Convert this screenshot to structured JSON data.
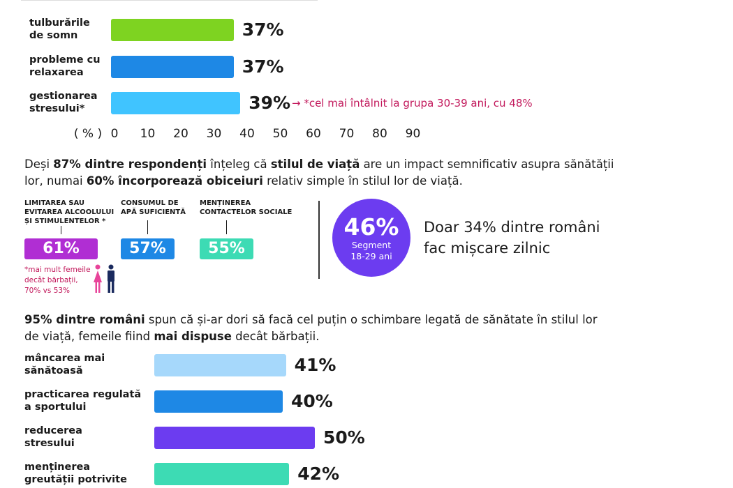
{
  "chart_data": [
    {
      "type": "bar",
      "orientation": "horizontal",
      "categories": [
        "tulburările de somn",
        "probleme cu relaxarea",
        "gestionarea stresului*"
      ],
      "values": [
        37,
        37,
        39
      ],
      "value_labels": [
        "37%",
        "37%",
        "39%"
      ],
      "colors": [
        "#7ed321",
        "#1e88e5",
        "#40c4ff"
      ],
      "axis_unit_label": "( % )",
      "xticks": [
        "0",
        "10",
        "20",
        "30",
        "40",
        "50",
        "60",
        "70",
        "80",
        "90"
      ],
      "xlim": [
        0,
        90
      ],
      "annotation": "→ *cel mai întâlnit la grupa 30-39 ani, cu 48%"
    },
    {
      "type": "bar",
      "orientation": "horizontal",
      "categories": [
        "mâncarea mai sănătoasă",
        "practicarea regulată a sportului",
        "reducerea stresului",
        "menținerea greutății potrivite"
      ],
      "values": [
        41,
        40,
        50,
        42
      ],
      "value_labels": [
        "41%",
        "40%",
        "50%",
        "42%"
      ],
      "colors": [
        "#a6d8fb",
        "#1e88e5",
        "#6c3cf0",
        "#3ddbb4"
      ]
    }
  ],
  "paragraph1": {
    "p1": "Deși ",
    "b1": "87% dintre respondenți",
    "p2": " înțeleg că ",
    "b2": "stilul de viață",
    "p3": " are un impact semnificativ asupra sănătății lor, numai ",
    "b3": "60% încorporează obiceiuri",
    "p4": " relativ simple în stilul lor de viață."
  },
  "stats": [
    {
      "label_lines": [
        "Limitarea sau",
        "evitarea alcoolului",
        "și stimulentelor *"
      ],
      "value": "61%",
      "percent": 61,
      "color": "#b02ed3"
    },
    {
      "label_lines": [
        "Consumul de",
        "apă suficientă"
      ],
      "value": "57%",
      "percent": 57,
      "color": "#1e88e5"
    },
    {
      "label_lines": [
        "Menținerea",
        "contactelor sociale"
      ],
      "value": "55%",
      "percent": 55,
      "color": "#3ddbb4"
    }
  ],
  "gender_note": [
    "*mai mult femeile",
    "decât bărbații,",
    "70% vs 53%"
  ],
  "gender_colors": {
    "female": "#e8449a",
    "male": "#1a2a5e"
  },
  "circle": {
    "value": "46%",
    "line1": "Segment",
    "line2": "18-29 ani",
    "color": "#6c3cf0"
  },
  "movement": {
    "line1": "Doar 34% dintre români",
    "line2": "fac mișcare zilnic"
  },
  "paragraph2": {
    "b1": "95% dintre români",
    "p1": " spun că și-ar dori să facă cel puțin o schimbare legată de sănătate în stilul lor de viață, femeile fiind ",
    "b2": "mai dispuse",
    "p2": " decât bărbații."
  }
}
